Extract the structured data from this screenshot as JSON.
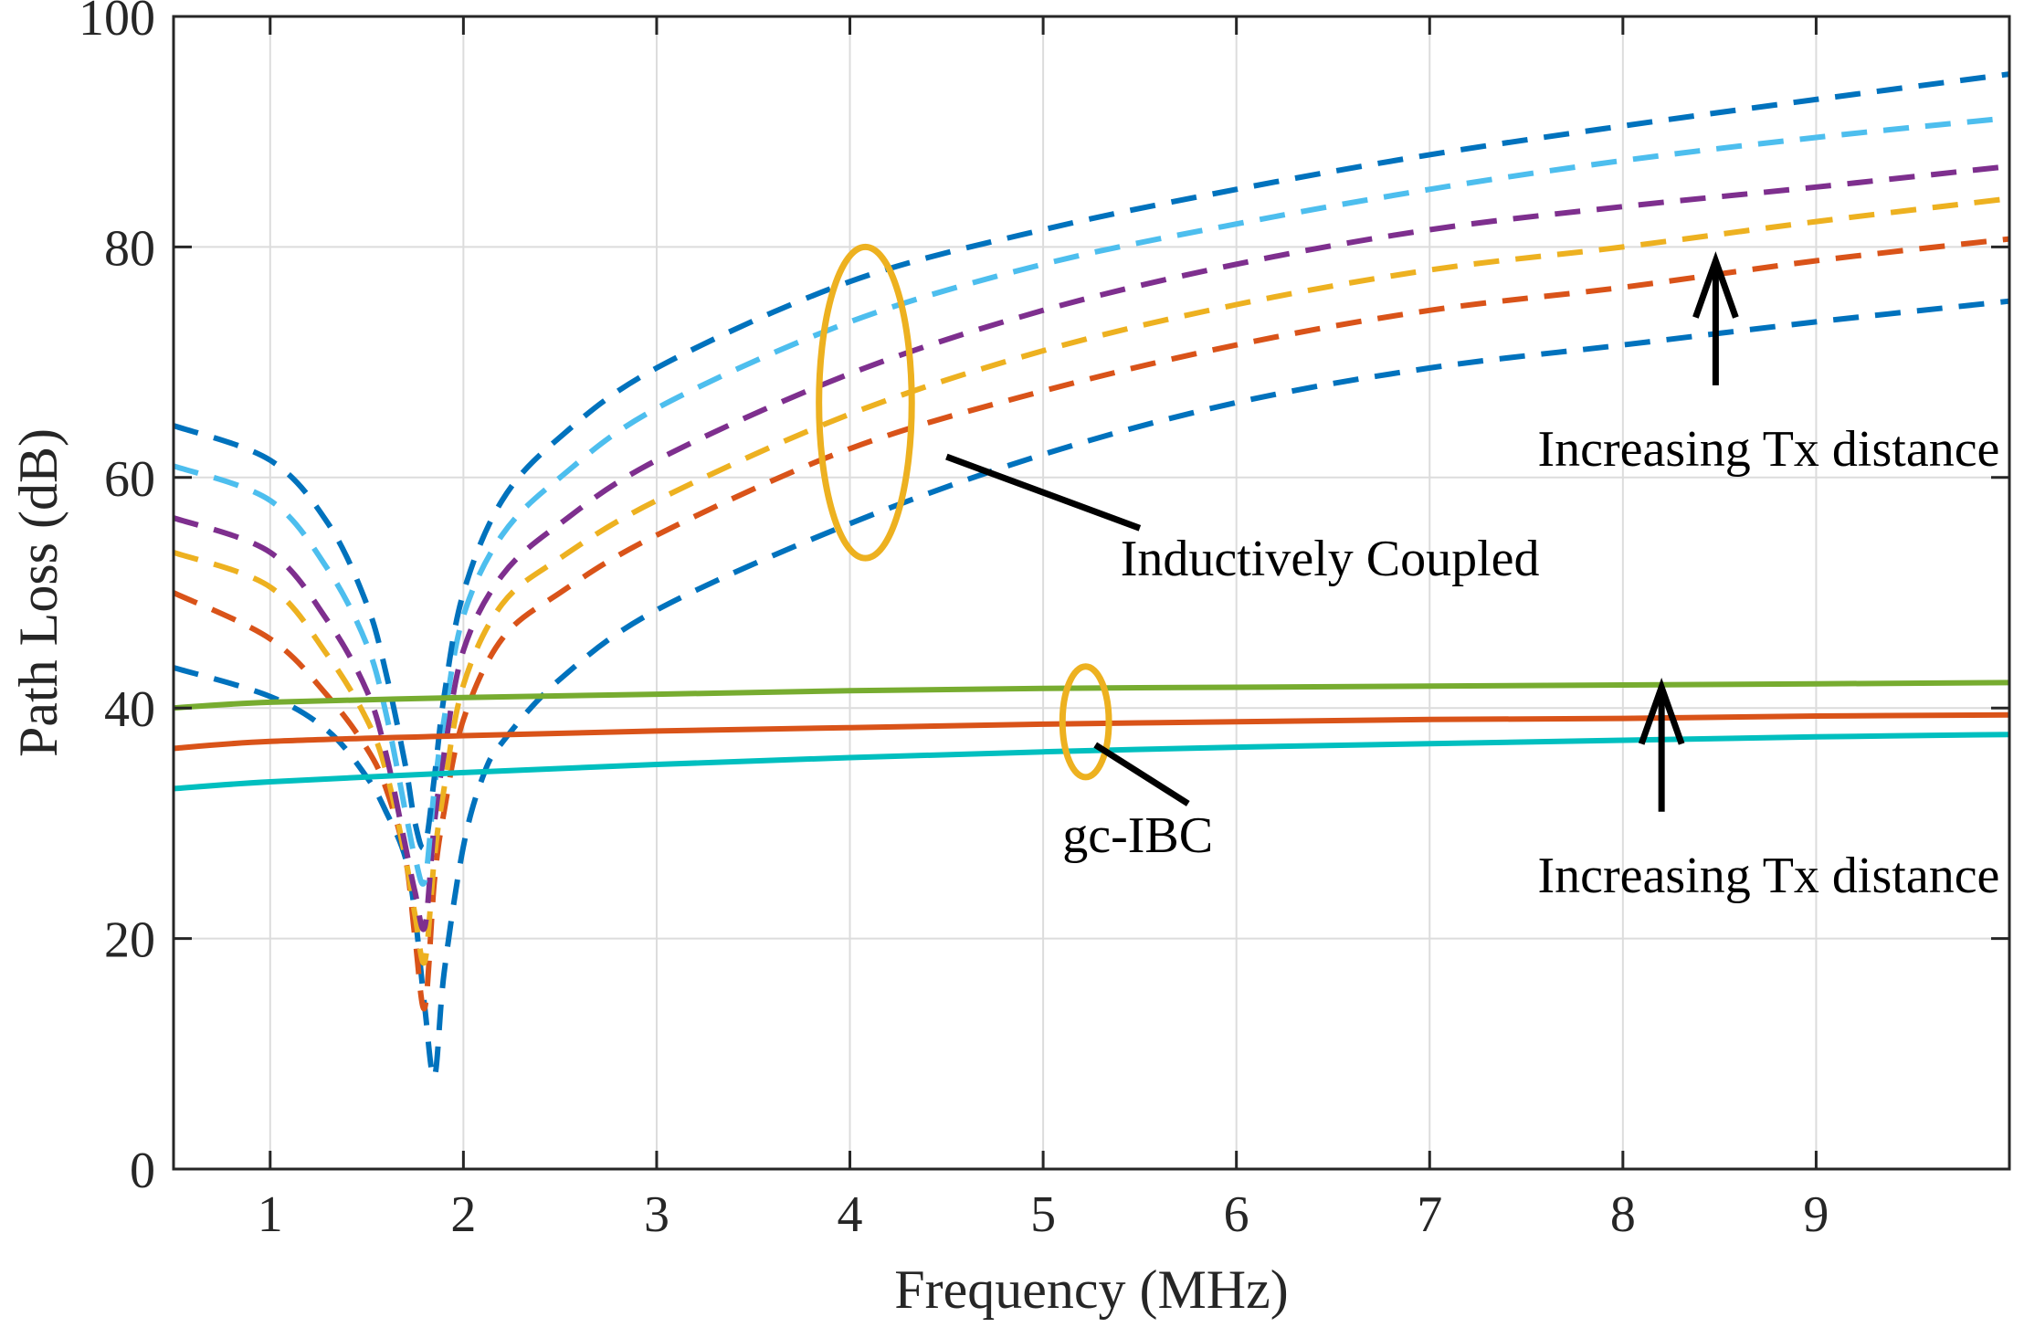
{
  "chart_data": {
    "type": "line",
    "xlabel": "Frequency (MHz)",
    "ylabel": "Path Loss (dB)",
    "xlim": [
      0.5,
      10
    ],
    "ylim": [
      0,
      100
    ],
    "xticks": [
      1,
      2,
      3,
      4,
      5,
      6,
      7,
      8,
      9
    ],
    "yticks": [
      0,
      20,
      40,
      60,
      80,
      100
    ],
    "grid": true,
    "legend": "none",
    "series": [
      {
        "group": "inductive",
        "style": "dashed",
        "color": "#0072BD",
        "points": [
          [
            0.5,
            43.5
          ],
          [
            1,
            41
          ],
          [
            1.3,
            38
          ],
          [
            1.5,
            34
          ],
          [
            1.6,
            31
          ],
          [
            1.7,
            27
          ],
          [
            1.75,
            22
          ],
          [
            1.8,
            14
          ],
          [
            1.85,
            8
          ],
          [
            1.9,
            17
          ],
          [
            2,
            28
          ],
          [
            2.1,
            34
          ],
          [
            2.2,
            37
          ],
          [
            2.5,
            42.5
          ],
          [
            3,
            48.5
          ],
          [
            4,
            56
          ],
          [
            5,
            62
          ],
          [
            6,
            66.5
          ],
          [
            7,
            69.5
          ],
          [
            8,
            71.5
          ],
          [
            9,
            73.5
          ],
          [
            10,
            75.3
          ]
        ]
      },
      {
        "group": "inductive",
        "style": "dashed",
        "color": "#D95319",
        "points": [
          [
            0.5,
            50
          ],
          [
            1,
            46
          ],
          [
            1.3,
            41
          ],
          [
            1.5,
            36.5
          ],
          [
            1.6,
            33
          ],
          [
            1.7,
            27
          ],
          [
            1.75,
            20
          ],
          [
            1.8,
            14
          ],
          [
            1.85,
            25
          ],
          [
            1.9,
            31
          ],
          [
            2,
            39
          ],
          [
            2.2,
            46
          ],
          [
            2.5,
            50
          ],
          [
            3,
            55
          ],
          [
            4,
            62.5
          ],
          [
            5,
            67.5
          ],
          [
            6,
            71.5
          ],
          [
            7,
            74.5
          ],
          [
            8,
            76.5
          ],
          [
            9,
            78.8
          ],
          [
            10,
            80.7
          ]
        ]
      },
      {
        "group": "inductive",
        "style": "dashed",
        "color": "#EDB120",
        "points": [
          [
            0.5,
            53.5
          ],
          [
            1,
            50.5
          ],
          [
            1.3,
            44.5
          ],
          [
            1.5,
            39
          ],
          [
            1.6,
            34.5
          ],
          [
            1.7,
            27
          ],
          [
            1.75,
            22
          ],
          [
            1.8,
            18
          ],
          [
            1.85,
            27
          ],
          [
            1.9,
            33
          ],
          [
            2,
            42
          ],
          [
            2.2,
            49
          ],
          [
            2.5,
            53
          ],
          [
            3,
            58
          ],
          [
            4,
            65.5
          ],
          [
            5,
            71
          ],
          [
            6,
            75
          ],
          [
            7,
            78
          ],
          [
            8,
            80
          ],
          [
            9,
            82.2
          ],
          [
            10,
            84.2
          ]
        ]
      },
      {
        "group": "inductive",
        "style": "dashed",
        "color": "#7E2F8E",
        "points": [
          [
            0.5,
            56.5
          ],
          [
            1,
            53.5
          ],
          [
            1.3,
            47.5
          ],
          [
            1.5,
            41.5
          ],
          [
            1.6,
            36
          ],
          [
            1.7,
            28
          ],
          [
            1.75,
            24
          ],
          [
            1.8,
            21
          ],
          [
            1.85,
            30
          ],
          [
            1.9,
            36
          ],
          [
            2,
            45
          ],
          [
            2.2,
            51.5
          ],
          [
            2.5,
            56
          ],
          [
            3,
            61.5
          ],
          [
            4,
            69
          ],
          [
            5,
            74.5
          ],
          [
            6,
            78.5
          ],
          [
            7,
            81.5
          ],
          [
            8,
            83.5
          ],
          [
            9,
            85.2
          ],
          [
            10,
            87
          ]
        ]
      },
      {
        "group": "inductive",
        "style": "dashed",
        "color": "#4DBEEE",
        "points": [
          [
            0.5,
            61
          ],
          [
            1,
            58
          ],
          [
            1.3,
            52
          ],
          [
            1.5,
            45.5
          ],
          [
            1.6,
            39.5
          ],
          [
            1.7,
            31
          ],
          [
            1.75,
            27
          ],
          [
            1.8,
            25
          ],
          [
            1.85,
            33
          ],
          [
            1.9,
            39
          ],
          [
            2,
            48
          ],
          [
            2.2,
            55
          ],
          [
            2.5,
            60
          ],
          [
            3,
            66
          ],
          [
            4,
            73.5
          ],
          [
            5,
            78.5
          ],
          [
            6,
            82
          ],
          [
            7,
            85
          ],
          [
            8,
            87.5
          ],
          [
            9,
            89.5
          ],
          [
            10,
            91.2
          ]
        ]
      },
      {
        "group": "inductive",
        "style": "dashed",
        "color": "#0072BD",
        "points": [
          [
            0.5,
            64.5
          ],
          [
            1,
            61.5
          ],
          [
            1.3,
            56
          ],
          [
            1.5,
            49
          ],
          [
            1.6,
            43
          ],
          [
            1.7,
            35
          ],
          [
            1.75,
            30
          ],
          [
            1.8,
            28
          ],
          [
            1.85,
            34
          ],
          [
            1.9,
            41
          ],
          [
            2,
            50
          ],
          [
            2.2,
            58
          ],
          [
            2.5,
            63.5
          ],
          [
            3,
            69.5
          ],
          [
            4,
            77
          ],
          [
            5,
            81.5
          ],
          [
            6,
            85
          ],
          [
            7,
            88
          ],
          [
            8,
            90.5
          ],
          [
            9,
            92.8
          ],
          [
            10,
            95
          ]
        ]
      },
      {
        "group": "gc-ibc",
        "style": "solid",
        "color": "#77AC30",
        "points": [
          [
            0.5,
            40
          ],
          [
            1,
            40.5
          ],
          [
            2,
            40.9
          ],
          [
            3,
            41.2
          ],
          [
            4,
            41.5
          ],
          [
            5,
            41.7
          ],
          [
            6,
            41.8
          ],
          [
            7,
            41.9
          ],
          [
            8,
            42.0
          ],
          [
            9,
            42.1
          ],
          [
            10,
            42.2
          ]
        ]
      },
      {
        "group": "gc-ibc",
        "style": "solid",
        "color": "#D95319",
        "points": [
          [
            0.5,
            36.5
          ],
          [
            1,
            37.1
          ],
          [
            2,
            37.6
          ],
          [
            3,
            38
          ],
          [
            4,
            38.3
          ],
          [
            5,
            38.6
          ],
          [
            6,
            38.8
          ],
          [
            7,
            39
          ],
          [
            8,
            39.1
          ],
          [
            9,
            39.3
          ],
          [
            10,
            39.4
          ]
        ]
      },
      {
        "group": "gc-ibc",
        "style": "solid",
        "color": "#00BFBF",
        "points": [
          [
            0.5,
            33
          ],
          [
            1,
            33.6
          ],
          [
            2,
            34.4
          ],
          [
            3,
            35.1
          ],
          [
            4,
            35.7
          ],
          [
            5,
            36.2
          ],
          [
            6,
            36.6
          ],
          [
            7,
            36.9
          ],
          [
            8,
            37.2
          ],
          [
            9,
            37.5
          ],
          [
            10,
            37.7
          ]
        ]
      }
    ],
    "annotations": [
      {
        "text": "Inductively Coupled",
        "x": 5.4,
        "y": 51.5,
        "anchor": "start"
      },
      {
        "text": "gc-IBC",
        "x": 5.1,
        "y": 27.5,
        "anchor": "start"
      },
      {
        "text": "Increasing Tx distance",
        "x": 9.95,
        "y": 61,
        "anchor": "end"
      },
      {
        "text": "Increasing Tx distance",
        "x": 9.95,
        "y": 24,
        "anchor": "end"
      }
    ],
    "ellipses": [
      {
        "cx": 4.08,
        "cy": 66.5,
        "rx": 0.24,
        "ry": 13.5,
        "color": "#EDB120"
      },
      {
        "cx": 5.22,
        "cy": 38.8,
        "rx": 0.12,
        "ry": 4.8,
        "color": "#EDB120"
      }
    ],
    "leader_lines": [
      {
        "x1": 4.5,
        "y1": 61.8,
        "x2": 5.5,
        "y2": 55.6
      },
      {
        "x1": 5.27,
        "y1": 36.8,
        "x2": 5.75,
        "y2": 31.7
      }
    ],
    "arrows": [
      {
        "x1": 8.48,
        "y1": 68,
        "x2": 8.48,
        "y2": 78.8
      },
      {
        "x1": 8.2,
        "y1": 31,
        "x2": 8.2,
        "y2": 41.8
      }
    ]
  }
}
